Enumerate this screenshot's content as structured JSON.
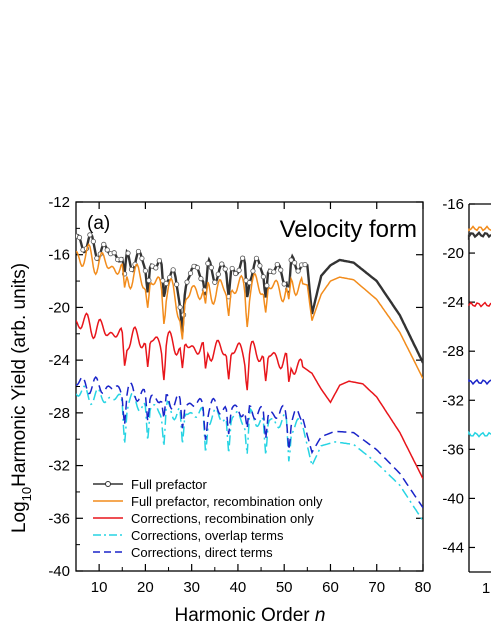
{
  "chart_data": [
    {
      "type": "line",
      "panel_label": "(a)",
      "title": "Velocity form",
      "xlabel": "Harmonic Order",
      "xlabel_italic": "n",
      "ylabel_prefix": "Log",
      "ylabel_sub": "10",
      "ylabel_rest": "Harmonic Yield (arb. units)",
      "xlim": [
        5,
        80
      ],
      "ylim": [
        -40,
        -12
      ],
      "xticks": [
        10,
        20,
        30,
        40,
        50,
        60,
        70,
        80
      ],
      "yticks": [
        -40,
        -36,
        -32,
        -28,
        -24,
        -20,
        -16,
        -12
      ],
      "legend_position": "bottom-left",
      "series": [
        {
          "name": "Full prefactor",
          "color": "#333333",
          "style": "line-circles",
          "x": [
            5,
            10,
            15,
            20,
            25,
            28,
            30,
            35,
            40,
            45,
            50,
            53,
            55,
            56,
            58,
            60,
            62,
            65,
            70,
            75,
            80
          ],
          "y": [
            -14.8,
            -15.6,
            -16.1,
            -16.6,
            -17.2,
            -19.5,
            -17.1,
            -17.3,
            -17.0,
            -17.0,
            -17.4,
            -16.6,
            -16.8,
            -20.5,
            -17.6,
            -16.8,
            -16.4,
            -16.6,
            -18.0,
            -20.6,
            -24.2
          ]
        },
        {
          "name": "Full prefactor, recombination only",
          "color": "#f28c1c",
          "style": "solid",
          "x": [
            5,
            10,
            15,
            20,
            25,
            28,
            30,
            35,
            40,
            45,
            50,
            53,
            55,
            56,
            58,
            60,
            62,
            65,
            70,
            75,
            80
          ],
          "y": [
            -16.0,
            -16.5,
            -17.2,
            -18.0,
            -18.5,
            -20.5,
            -18.6,
            -18.7,
            -18.5,
            -18.4,
            -18.6,
            -18.1,
            -18.3,
            -21.0,
            -19.0,
            -18.0,
            -17.7,
            -17.9,
            -19.4,
            -21.9,
            -25.4
          ]
        },
        {
          "name": "Corrections, recombination only",
          "color": "#e8151b",
          "style": "solid",
          "x": [
            5,
            10,
            15,
            20,
            25,
            30,
            35,
            40,
            45,
            50,
            54,
            56,
            58,
            60,
            62,
            64,
            67,
            70,
            75,
            80
          ],
          "y": [
            -21.0,
            -21.6,
            -22.2,
            -22.5,
            -22.7,
            -23.0,
            -23.2,
            -23.3,
            -23.5,
            -24.0,
            -24.5,
            -25.0,
            -26.2,
            -27.2,
            -25.9,
            -25.6,
            -25.8,
            -26.8,
            -29.5,
            -33.0
          ]
        },
        {
          "name": "Corrections, overlap terms",
          "color": "#27d4e3",
          "style": "dash-dot",
          "x": [
            5,
            10,
            15,
            20,
            25,
            30,
            35,
            40,
            45,
            50,
            54,
            56,
            58,
            61,
            65,
            70,
            75,
            80
          ],
          "y": [
            -26.4,
            -26.8,
            -27.0,
            -27.4,
            -27.8,
            -28.0,
            -28.3,
            -28.3,
            -28.5,
            -28.7,
            -29.0,
            -32.0,
            -30.5,
            -30.2,
            -30.4,
            -31.8,
            -33.5,
            -36.2
          ]
        },
        {
          "name": "Corrections, direct terms",
          "color": "#1a24c9",
          "style": "dashed",
          "x": [
            5,
            10,
            15,
            20,
            25,
            30,
            35,
            40,
            45,
            50,
            54,
            56,
            58,
            61,
            65,
            70,
            75,
            80
          ],
          "y": [
            -25.7,
            -26.0,
            -26.3,
            -26.6,
            -27.0,
            -27.3,
            -27.6,
            -27.7,
            -27.9,
            -28.1,
            -28.4,
            -31.0,
            -29.8,
            -29.4,
            -29.5,
            -30.8,
            -32.6,
            -35.2
          ]
        }
      ]
    },
    {
      "type": "line",
      "note_visible": "partially visible neighbouring panel",
      "xticks_visible": [
        "1"
      ],
      "yticks": [
        -44,
        -40,
        -36,
        -32,
        -28,
        -24,
        -20,
        -16
      ],
      "ylim": [
        -46,
        -16
      ],
      "series": [
        {
          "color": "#f28c1c",
          "y_start": -18.0
        },
        {
          "color": "#333333",
          "y_start": -18.5
        },
        {
          "color": "#e8151b",
          "y_start": -24.2
        },
        {
          "color": "#1a24c9",
          "y_start": -30.5
        },
        {
          "color": "#27d4e3",
          "y_start": -34.8
        }
      ]
    }
  ]
}
